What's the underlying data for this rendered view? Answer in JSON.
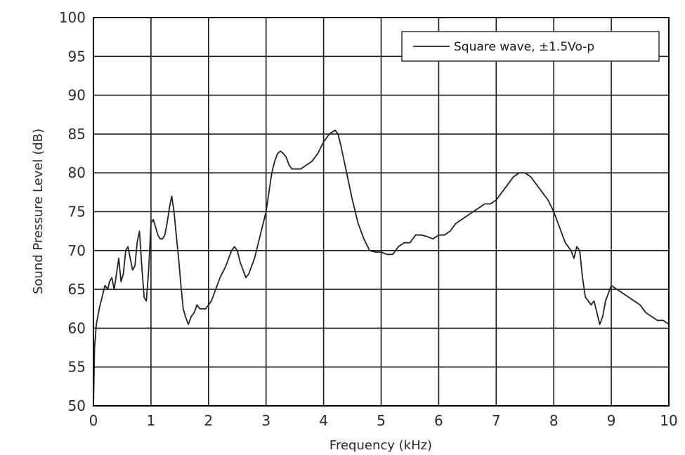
{
  "chart_data": {
    "type": "line",
    "title": "",
    "xlabel": "Frequency (kHz)",
    "ylabel": "Sound Pressure Level (dB)",
    "xlim": [
      0,
      10
    ],
    "ylim": [
      50,
      100
    ],
    "x_ticks": [
      0,
      1,
      2,
      3,
      4,
      5,
      6,
      7,
      8,
      9,
      10
    ],
    "y_ticks": [
      50,
      55,
      60,
      65,
      70,
      75,
      80,
      85,
      90,
      95,
      100
    ],
    "grid": true,
    "legend_position": "top-right",
    "series": [
      {
        "name": "Square wave, ±1.5Vo-p",
        "color": "#222222",
        "x": [
          0.0,
          0.02,
          0.05,
          0.1,
          0.15,
          0.2,
          0.25,
          0.28,
          0.32,
          0.36,
          0.4,
          0.44,
          0.48,
          0.52,
          0.56,
          0.6,
          0.64,
          0.68,
          0.72,
          0.76,
          0.8,
          0.84,
          0.88,
          0.92,
          0.96,
          1.0,
          1.04,
          1.08,
          1.12,
          1.16,
          1.2,
          1.24,
          1.28,
          1.32,
          1.36,
          1.4,
          1.44,
          1.48,
          1.52,
          1.56,
          1.6,
          1.65,
          1.7,
          1.75,
          1.8,
          1.85,
          1.9,
          1.95,
          2.0,
          2.05,
          2.1,
          2.15,
          2.2,
          2.3,
          2.4,
          2.45,
          2.5,
          2.55,
          2.6,
          2.65,
          2.7,
          2.75,
          2.8,
          2.85,
          2.9,
          2.95,
          3.0,
          3.05,
          3.1,
          3.15,
          3.2,
          3.25,
          3.3,
          3.35,
          3.4,
          3.45,
          3.5,
          3.55,
          3.6,
          3.7,
          3.8,
          3.9,
          4.0,
          4.1,
          4.2,
          4.25,
          4.3,
          4.4,
          4.5,
          4.6,
          4.7,
          4.8,
          4.9,
          5.0,
          5.1,
          5.2,
          5.3,
          5.4,
          5.5,
          5.6,
          5.7,
          5.8,
          5.9,
          6.0,
          6.1,
          6.2,
          6.3,
          6.4,
          6.5,
          6.6,
          6.7,
          6.8,
          6.9,
          7.0,
          7.1,
          7.2,
          7.3,
          7.4,
          7.5,
          7.6,
          7.7,
          7.8,
          7.9,
          8.0,
          8.1,
          8.2,
          8.3,
          8.35,
          8.4,
          8.45,
          8.5,
          8.55,
          8.6,
          8.65,
          8.7,
          8.75,
          8.8,
          8.85,
          8.9,
          8.95,
          9.0,
          9.1,
          9.2,
          9.3,
          9.4,
          9.5,
          9.6,
          9.7,
          9.8,
          9.9,
          10.0
        ],
        "y": [
          50.0,
          57.5,
          60.5,
          62.5,
          64.0,
          65.5,
          65.0,
          66.0,
          66.5,
          65.0,
          67.0,
          69.0,
          66.0,
          67.0,
          70.0,
          70.5,
          69.0,
          67.5,
          68.0,
          71.0,
          72.5,
          68.0,
          64.0,
          63.5,
          67.5,
          73.5,
          74.0,
          73.0,
          72.0,
          71.5,
          71.5,
          72.0,
          73.5,
          75.5,
          77.0,
          75.0,
          72.0,
          69.0,
          65.5,
          62.5,
          61.5,
          60.5,
          61.5,
          62.0,
          63.0,
          62.5,
          62.5,
          62.5,
          63.0,
          63.5,
          64.5,
          65.5,
          66.5,
          68.0,
          70.0,
          70.5,
          70.0,
          68.5,
          67.5,
          66.5,
          67.0,
          68.0,
          69.0,
          70.5,
          72.0,
          73.5,
          75.0,
          77.5,
          80.0,
          81.5,
          82.5,
          82.8,
          82.5,
          82.0,
          81.0,
          80.5,
          80.5,
          80.5,
          80.5,
          81.0,
          81.5,
          82.5,
          84.0,
          85.0,
          85.5,
          85.0,
          83.5,
          80.0,
          76.5,
          73.5,
          71.5,
          70.0,
          69.8,
          69.8,
          69.5,
          69.5,
          70.5,
          71.0,
          71.0,
          72.0,
          72.0,
          71.8,
          71.5,
          72.0,
          72.0,
          72.5,
          73.5,
          74.0,
          74.5,
          75.0,
          75.5,
          76.0,
          76.0,
          76.5,
          77.5,
          78.5,
          79.5,
          80.0,
          80.0,
          79.5,
          78.5,
          77.5,
          76.5,
          75.0,
          73.0,
          71.0,
          70.0,
          69.0,
          70.5,
          70.0,
          66.5,
          64.0,
          63.5,
          63.0,
          63.5,
          62.0,
          60.5,
          61.5,
          63.5,
          64.5,
          65.5,
          65.0,
          64.5,
          64.0,
          63.5,
          63.0,
          62.0,
          61.5,
          61.0,
          61.0,
          60.5
        ]
      }
    ]
  }
}
